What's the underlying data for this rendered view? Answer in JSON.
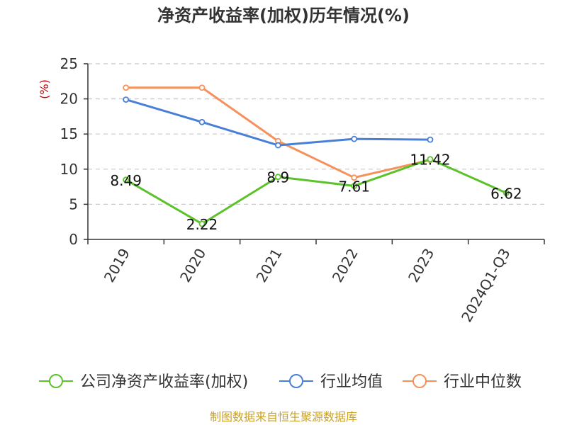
{
  "chart_data": {
    "type": "line",
    "title": "净资产收益率(加权)历年情况(%)",
    "xlabel": "",
    "ylabel": "(%)",
    "categories": [
      "2019",
      "2020",
      "2021",
      "2022",
      "2023",
      "2024Q1-Q3"
    ],
    "ylim": [
      0,
      25
    ],
    "yticks": [
      0,
      5,
      10,
      15,
      20,
      25
    ],
    "grid": true,
    "legend_position": "bottom",
    "series": [
      {
        "name": "公司净资产收益率(加权)",
        "color": "#5cc22b",
        "values": [
          8.49,
          2.22,
          8.9,
          7.61,
          11.42,
          6.62
        ],
        "labels": [
          "8.49",
          "2.22",
          "8.9",
          "7.61",
          "11.42",
          "6.62"
        ]
      },
      {
        "name": "行业均值",
        "color": "#4a7fd8",
        "values": [
          19.9,
          16.7,
          13.4,
          14.3,
          14.2,
          null
        ]
      },
      {
        "name": "行业中位数",
        "color": "#f5925b",
        "values": [
          21.6,
          21.6,
          14.0,
          8.8,
          11.3,
          null
        ]
      }
    ],
    "source": "制图数据来自恒生聚源数据库"
  }
}
